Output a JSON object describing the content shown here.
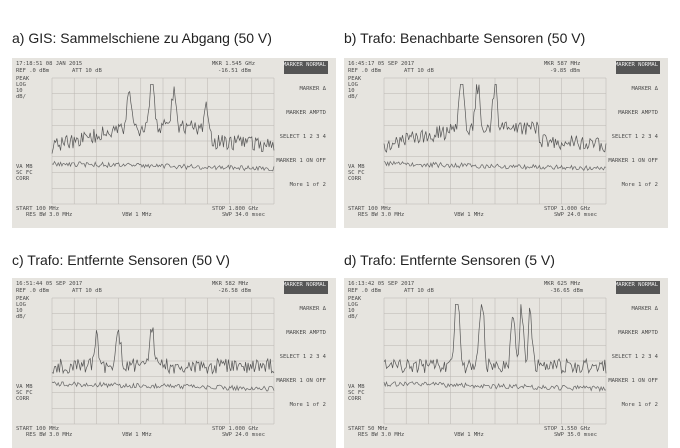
{
  "panels": [
    {
      "caption": "a) GIS: Sammelschiene zu Abgang (50 V)",
      "time": "17:18:51 08 JAN 2015",
      "mkr_freq": "MKR 1.545 GHz",
      "mkr_level": "-16.51 dBm",
      "start": "START 100 MHz",
      "stop": "STOP 1.800 GHz",
      "swp": "SWP 34.0 msec"
    },
    {
      "caption": "b) Trafo: Benachbarte Sensoren (50 V)",
      "time": "16:45:17 05 SEP 2017",
      "mkr_freq": "MKR 587 MHz",
      "mkr_level": "-9.85 dBm",
      "start": "START 100 MHz",
      "stop": "STOP 1.000 GHz",
      "swp": "SWP 24.0 msec"
    },
    {
      "caption": "c) Trafo: Entfernte Sensoren (50 V)",
      "time": "16:51:44 05 SEP 2017",
      "mkr_freq": "MKR 582 MHz",
      "mkr_level": "-26.58 dBm",
      "start": "START 100 MHz",
      "stop": "STOP 1.000 GHz",
      "swp": "SWP 24.0 msec"
    },
    {
      "caption": "d) Trafo: Entfernte Sensoren (5 V)",
      "time": "16:13:42 05 SEP 2017",
      "mkr_freq": "MKR 625 MHz",
      "mkr_level": "-36.65 dBm",
      "start": "START 50 MHz",
      "stop": "STOP 1.550 GHz",
      "swp": "SWP 35.0 msec"
    }
  ],
  "common": {
    "ref": "REF .0 dBm",
    "att": "ATT 10 dB",
    "left_labels": [
      "PEAK",
      "LOG",
      "10",
      "dB/"
    ],
    "corr_labels": [
      "VA MB",
      "SC FC",
      "CORR"
    ],
    "rbw": "RES BW 3.0 MHz",
    "vbw": "VBW 1 MHz"
  },
  "side_menu": [
    "MARKER NORMAL",
    "MARKER Δ",
    "MARKER AMPTD",
    "SELECT 1 2 3 4",
    "MARKER 1 ON OFF",
    "More 1 of 2"
  ]
}
